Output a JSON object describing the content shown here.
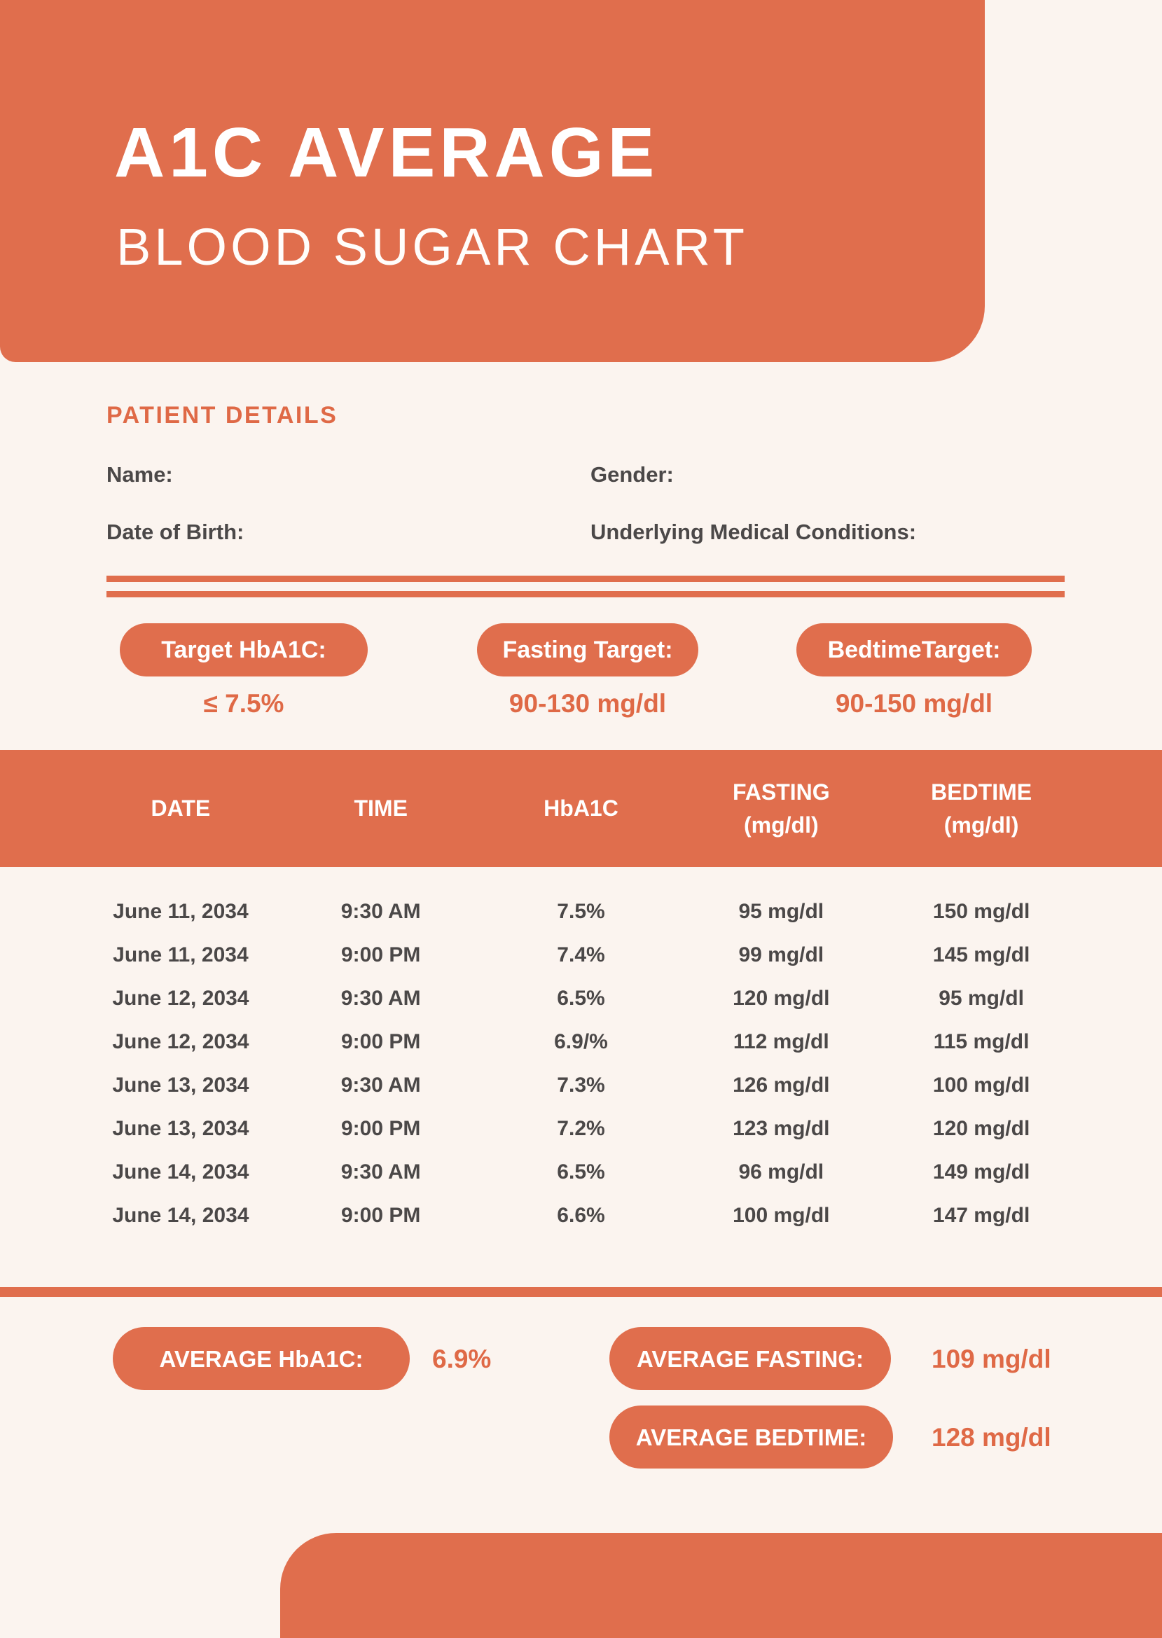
{
  "colors": {
    "orange_fill": "#E06E4D",
    "accent_text": "#DF6946",
    "cream_background": "#FBF4EF",
    "dark_text": "#4B4848",
    "white_text": "#FFFFFF"
  },
  "header": {
    "title": "A1C AVERAGE",
    "subtitle": "BLOOD SUGAR CHART"
  },
  "patient_details": {
    "heading": "PATIENT DETAILS",
    "name_label": "Name:",
    "gender_label": "Gender:",
    "dob_label": "Date of Birth:",
    "conditions_label": "Underlying Medical Conditions:"
  },
  "targets": [
    {
      "label": "Target HbA1C:",
      "value": "≤ 7.5%"
    },
    {
      "label": "Fasting Target:",
      "value": "90-130 mg/dl"
    },
    {
      "label": "BedtimeTarget:",
      "value": "90-150 mg/dl"
    }
  ],
  "table": {
    "columns": [
      {
        "line1": "DATE",
        "line2": ""
      },
      {
        "line1": "TIME",
        "line2": ""
      },
      {
        "line1": "HbA1C",
        "line2": ""
      },
      {
        "line1": "FASTING",
        "line2": "(mg/dl)"
      },
      {
        "line1": "BEDTIME",
        "line2": "(mg/dl)"
      }
    ],
    "rows": [
      [
        "June 11, 2034",
        "9:30 AM",
        "7.5%",
        "95 mg/dl",
        "150 mg/dl"
      ],
      [
        "June 11, 2034",
        "9:00 PM",
        "7.4%",
        "99 mg/dl",
        "145 mg/dl"
      ],
      [
        "June 12, 2034",
        "9:30 AM",
        "6.5%",
        "120 mg/dl",
        "95 mg/dl"
      ],
      [
        "June 12, 2034",
        "9:00 PM",
        "6.9/%",
        "112 mg/dl",
        "115 mg/dl"
      ],
      [
        "June 13, 2034",
        "9:30 AM",
        "7.3%",
        "126 mg/dl",
        "100 mg/dl"
      ],
      [
        "June 13, 2034",
        "9:00 PM",
        "7.2%",
        "123 mg/dl",
        "120 mg/dl"
      ],
      [
        "June 14, 2034",
        "9:30 AM",
        "6.5%",
        "96 mg/dl",
        "149 mg/dl"
      ],
      [
        "June 14, 2034",
        "9:00 PM",
        "6.6%",
        "100 mg/dl",
        "147 mg/dl"
      ]
    ]
  },
  "averages": [
    {
      "label": "AVERAGE HbA1C:",
      "value": "6.9%"
    },
    {
      "label": "AVERAGE FASTING:",
      "value": "109 mg/dl"
    },
    {
      "label": "AVERAGE BEDTIME:",
      "value": "128 mg/dl"
    }
  ]
}
